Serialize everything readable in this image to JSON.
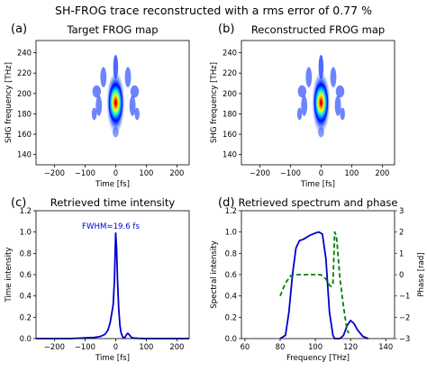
{
  "suptitle": "SH-FROG trace reconstructed with a rms error of 0.77 %",
  "chart_data": [
    {
      "panel": "(a)",
      "type": "heatmap",
      "title": "Target FROG map",
      "xlabel": "Time [fs]",
      "ylabel": "SHG frequency [THz]",
      "xlim": [
        -260,
        240
      ],
      "ylim": [
        130,
        252
      ],
      "xticks": [
        -200,
        -100,
        0,
        100,
        200
      ],
      "yticks": [
        140,
        160,
        180,
        200,
        220,
        240
      ],
      "colormap": "jet",
      "peak": {
        "time_fs": 0,
        "freq_THz": 191
      }
    },
    {
      "panel": "(b)",
      "type": "heatmap",
      "title": "Reconstructed FROG map",
      "xlabel": "Time [fs]",
      "ylabel": "SHG frequency [THz]",
      "xlim": [
        -260,
        240
      ],
      "ylim": [
        130,
        252
      ],
      "xticks": [
        -200,
        -100,
        0,
        100,
        200
      ],
      "yticks": [
        140,
        160,
        180,
        200,
        220,
        240
      ],
      "colormap": "jet",
      "peak": {
        "time_fs": 0,
        "freq_THz": 191
      }
    },
    {
      "panel": "(c)",
      "type": "line",
      "title": "Retrieved time intensity",
      "xlabel": "Time [fs]",
      "ylabel": "Time intensity",
      "xlim": [
        -260,
        240
      ],
      "ylim": [
        0,
        1.2
      ],
      "xticks": [
        -200,
        -100,
        0,
        100,
        200
      ],
      "yticks": [
        "0.0",
        "0.2",
        "0.4",
        "0.6",
        "0.8",
        "1.0",
        "1.2"
      ],
      "annotation": "FWHM=19.6 fs",
      "series": [
        {
          "color": "#0000cc",
          "x": [
            -260,
            -150,
            -110,
            -90,
            -70,
            -50,
            -35,
            -25,
            -18,
            -12,
            -8,
            -4,
            0,
            3,
            6,
            10,
            14,
            18,
            24,
            30,
            36,
            40,
            46,
            52,
            60,
            75,
            100,
            150,
            240
          ],
          "y": [
            0,
            0,
            0.005,
            0.008,
            0.01,
            0.02,
            0.04,
            0.08,
            0.15,
            0.25,
            0.32,
            0.55,
            0.99,
            0.85,
            0.55,
            0.28,
            0.12,
            0.05,
            0.01,
            0.01,
            0.04,
            0.05,
            0.03,
            0.01,
            0.005,
            0.002,
            0,
            0,
            0
          ]
        }
      ]
    },
    {
      "panel": "(d)",
      "type": "line",
      "title": "Retrieved spectrum and phase",
      "xlabel": "Frequency [THz]",
      "ylabel": "Spectral intensity",
      "ylabel_right": "Phase [rad]",
      "xlim": [
        58,
        145
      ],
      "ylim": [
        0,
        1.2
      ],
      "ylim_right": [
        -3,
        3
      ],
      "xticks": [
        60,
        80,
        100,
        120,
        140
      ],
      "yticks": [
        "0.0",
        "0.2",
        "0.4",
        "0.6",
        "0.8",
        "1.0",
        "1.2"
      ],
      "yticks_right": [
        "−3",
        "−2",
        "−1",
        "0",
        "1",
        "2",
        "3"
      ],
      "series": [
        {
          "color": "#0000cc",
          "style": "solid",
          "axis": "left",
          "x": [
            80,
            83,
            85,
            87,
            89,
            91,
            93,
            95,
            97,
            100,
            102,
            104,
            106,
            108,
            110,
            111,
            112,
            114,
            116,
            118,
            120,
            122,
            124,
            127,
            130
          ],
          "y": [
            0,
            0.03,
            0.25,
            0.6,
            0.85,
            0.92,
            0.93,
            0.95,
            0.97,
            0.99,
            1.0,
            0.98,
            0.75,
            0.25,
            0.03,
            0,
            0,
            0,
            0.03,
            0.12,
            0.17,
            0.14,
            0.08,
            0.02,
            0
          ]
        },
        {
          "color": "#008000",
          "style": "dashed",
          "axis": "right",
          "x": [
            80,
            83,
            86,
            89,
            92,
            96,
            100,
            103,
            106,
            108,
            109,
            110,
            111,
            112,
            113,
            114,
            116,
            118,
            119
          ],
          "y": [
            -1.0,
            -0.4,
            -0.05,
            0.0,
            0.0,
            0.0,
            0.0,
            0.0,
            -0.2,
            -0.5,
            -0.55,
            -0.4,
            2.0,
            1.8,
            0.8,
            -0.2,
            -1.5,
            -2.6,
            -2.75
          ]
        }
      ]
    }
  ]
}
